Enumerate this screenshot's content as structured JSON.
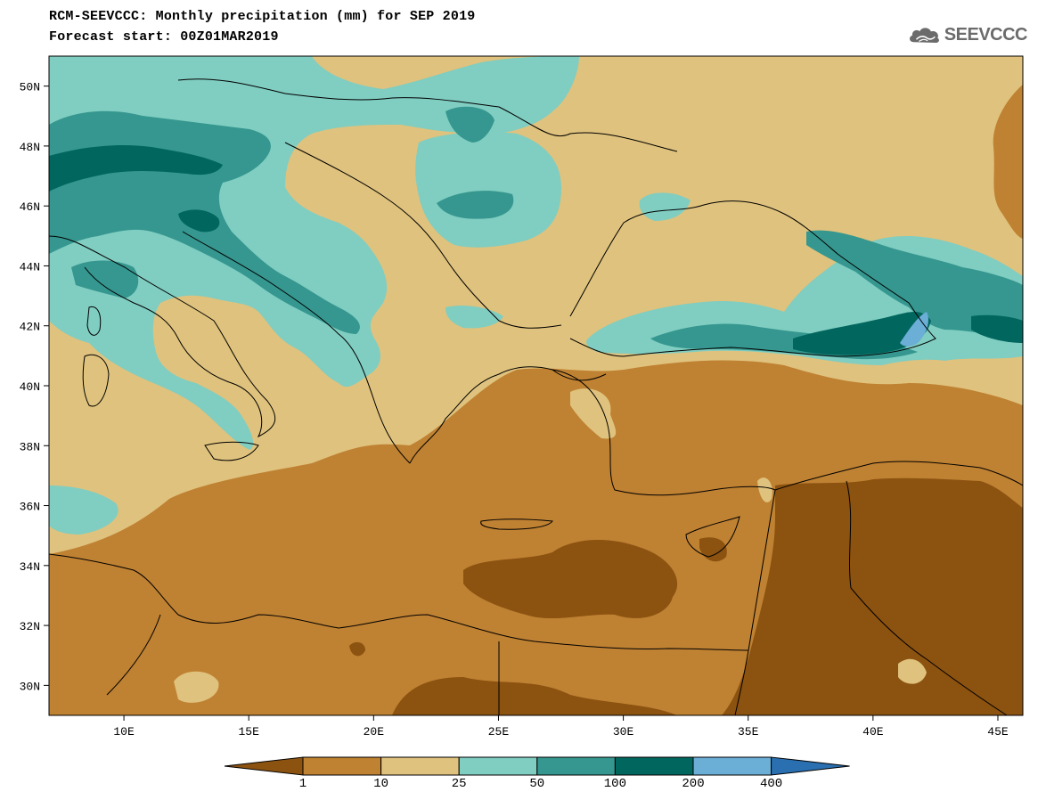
{
  "header": {
    "title": "RCM-SEEVCCC: Monthly precipitation (mm) for SEP 2019",
    "subtitle": "Forecast start: 00Z01MAR2019",
    "logo_text": "SEEVCCC",
    "logo_icon": "cloud-icon"
  },
  "map": {
    "lon_range": [
      7,
      46
    ],
    "lat_range": [
      29,
      51
    ],
    "lat_ticks": [
      "30N",
      "32N",
      "34N",
      "36N",
      "38N",
      "40N",
      "42N",
      "44N",
      "46N",
      "48N",
      "50N"
    ],
    "lon_ticks": [
      "10E",
      "15E",
      "20E",
      "25E",
      "30E",
      "35E",
      "40E",
      "45E"
    ],
    "colors": {
      "below_1": "#8c5210",
      "1_10": "#bf8132",
      "10_25": "#dfc27d",
      "25_50": "#80cdc1",
      "50_100": "#35978f",
      "100_200": "#01665e",
      "200_400": "#6baed6",
      "above_400": "#2a6fb0",
      "borders": "#000000"
    }
  },
  "legend": {
    "labels": [
      "1",
      "10",
      "25",
      "50",
      "100",
      "200",
      "400"
    ]
  }
}
